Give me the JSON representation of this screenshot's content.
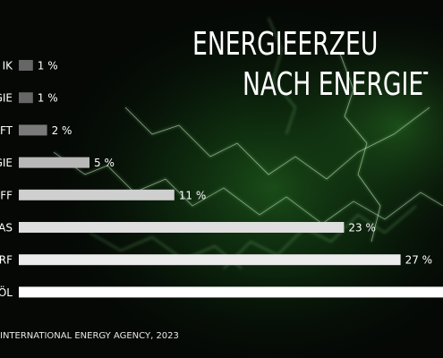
{
  "title_line1": "ENERGIEERZEUGUNG",
  "title_line2": "NACH ENERGIETR",
  "source": "INTERNATIONAL ENERGY AGENCY, 2023",
  "chart_data": {
    "type": "bar",
    "orientation": "horizontal",
    "categories": [
      "IK",
      "GIE",
      "FT",
      "GIE",
      "FF",
      "AS",
      "RF",
      "ÖL"
    ],
    "values": [
      1,
      1,
      2,
      5,
      11,
      23,
      27,
      30
    ],
    "value_labels": [
      "1 %",
      "1 %",
      "2 %",
      "5 %",
      "11 %",
      "23 %",
      "27 %",
      ""
    ],
    "bar_colors": [
      "#666666",
      "#666666",
      "#7a7a7a",
      "#b8b8b8",
      "#cfcfcf",
      "#dedede",
      "#ececec",
      "#ffffff"
    ],
    "xlim": [
      0,
      30
    ],
    "grid": false,
    "legend": "none"
  }
}
